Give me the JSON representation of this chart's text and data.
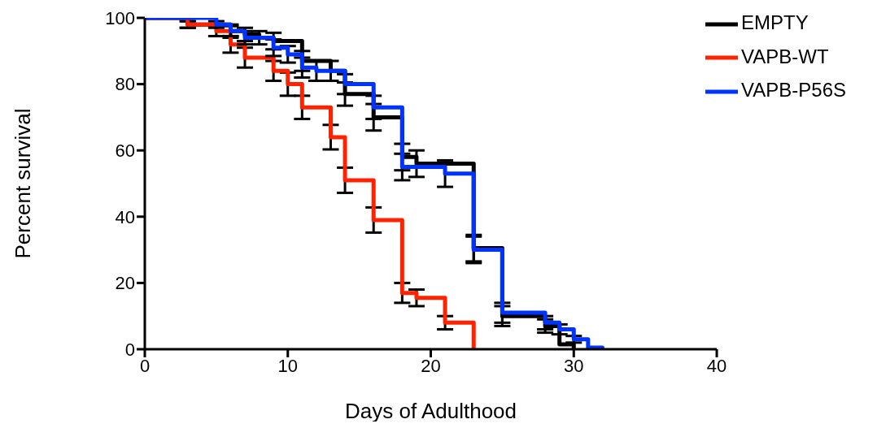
{
  "chart_data": {
    "type": "step",
    "xlabel": "Days of Adulthood",
    "ylabel": "Percent survival",
    "xlim": [
      0,
      40
    ],
    "xticks": [
      0,
      10,
      20,
      30,
      40
    ],
    "ylim": [
      0,
      100
    ],
    "yticks": [
      0,
      20,
      40,
      60,
      80,
      100
    ],
    "legend": "top right",
    "marker": "none",
    "line_style": "solid",
    "series": [
      {
        "name": "EMPTY",
        "color": "#000000",
        "x": [
          0,
          3,
          6,
          7,
          8,
          9,
          11,
          13,
          14,
          16,
          18,
          19,
          23,
          25,
          28,
          29,
          30
        ],
        "values": [
          100,
          98,
          96,
          95,
          94,
          93,
          87,
          84,
          77,
          70,
          58,
          56,
          30.5,
          10,
          7,
          1.5,
          0
        ],
        "errors": [
          null,
          1,
          2,
          2,
          2,
          2.5,
          3,
          3,
          3.5,
          4,
          4,
          4,
          4,
          3,
          2,
          null,
          null
        ]
      },
      {
        "name": "VAPB-WT",
        "color": "#ff2200",
        "x": [
          0,
          3,
          5,
          6,
          7,
          9,
          10,
          11,
          13,
          14,
          16,
          18,
          19,
          21,
          23
        ],
        "values": [
          100,
          98,
          96,
          92,
          88,
          84,
          80,
          73,
          64,
          51,
          39,
          17,
          15.5,
          8,
          0
        ],
        "errors": [
          null,
          1,
          1.5,
          2.5,
          3,
          3,
          3.5,
          3.5,
          3.7,
          3.8,
          3.8,
          3,
          2.5,
          2,
          null
        ]
      },
      {
        "name": "VAPB-P56S",
        "color": "#0033ff",
        "x": [
          0,
          5,
          6,
          7,
          9,
          10,
          11,
          12,
          14,
          16,
          18,
          21,
          23,
          25,
          28,
          29,
          30,
          31,
          32
        ],
        "values": [
          100,
          98,
          96,
          94,
          91,
          89,
          85,
          84,
          80,
          73,
          55,
          53,
          30,
          11,
          8,
          6,
          3,
          0.5,
          0
        ],
        "errors": [
          null,
          1,
          1.5,
          2,
          2.5,
          2.5,
          3,
          3,
          3,
          3.5,
          4,
          4,
          4,
          3,
          2,
          1.5,
          1,
          null,
          null
        ]
      }
    ]
  }
}
